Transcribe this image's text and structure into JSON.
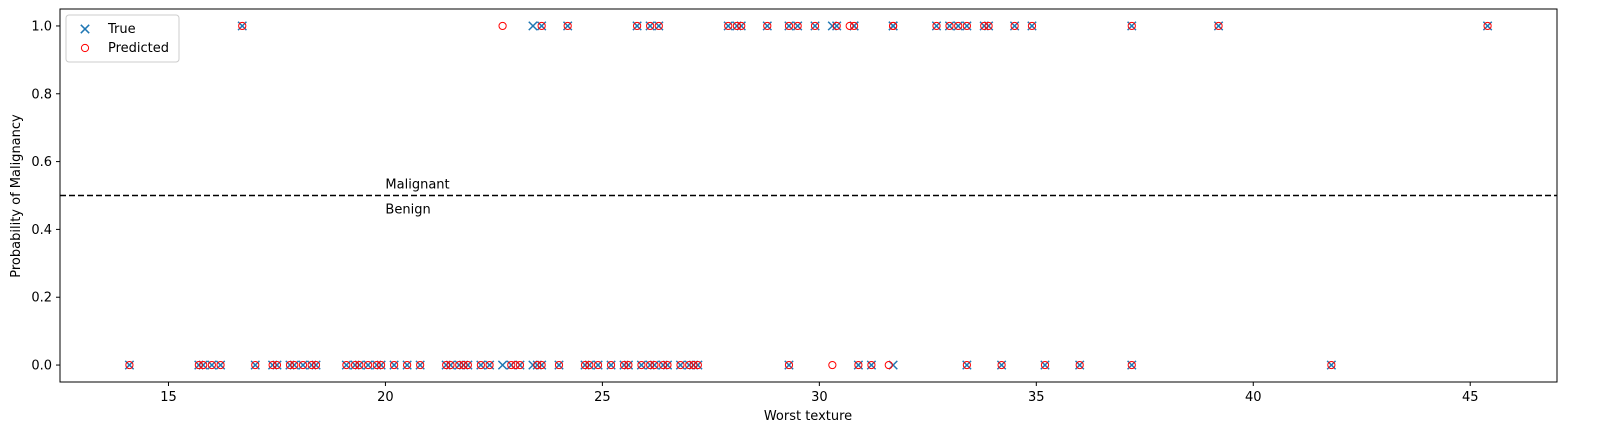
{
  "chart_data": {
    "type": "scatter",
    "title": "",
    "xlabel": "Worst texture",
    "ylabel": "Probability of Malignancy",
    "xlim": [
      12.5,
      47.0
    ],
    "ylim": [
      -0.05,
      1.05
    ],
    "xticks": [
      15,
      20,
      25,
      30,
      35,
      40,
      45
    ],
    "xtick_labels": [
      "15",
      "20",
      "25",
      "30",
      "35",
      "40",
      "45"
    ],
    "yticks": [
      0.0,
      0.2,
      0.4,
      0.6,
      0.8,
      1.0
    ],
    "ytick_labels": [
      "0.0",
      "0.2",
      "0.4",
      "0.6",
      "0.8",
      "1.0"
    ],
    "grid": false,
    "legend_position": "top-left",
    "threshold": {
      "y": 0.5,
      "style": "dashed",
      "color": "#000000",
      "above_label": "Malignant",
      "below_label": "Benign",
      "label_x": 20.0
    },
    "series": [
      {
        "name": "True",
        "marker": "x",
        "color": "#1f77b4",
        "points": [
          [
            16.7,
            1
          ],
          [
            23.4,
            1
          ],
          [
            23.6,
            1
          ],
          [
            24.2,
            1
          ],
          [
            25.8,
            1
          ],
          [
            26.1,
            1
          ],
          [
            26.3,
            1
          ],
          [
            27.9,
            1
          ],
          [
            28.1,
            1
          ],
          [
            28.2,
            1
          ],
          [
            28.8,
            1
          ],
          [
            29.3,
            1
          ],
          [
            29.5,
            1
          ],
          [
            29.9,
            1
          ],
          [
            30.3,
            1
          ],
          [
            30.4,
            1
          ],
          [
            30.8,
            1
          ],
          [
            30.8,
            1
          ],
          [
            31.7,
            1
          ],
          [
            31.7,
            1
          ],
          [
            32.7,
            1
          ],
          [
            33.0,
            1
          ],
          [
            33.2,
            1
          ],
          [
            33.4,
            1
          ],
          [
            33.8,
            1
          ],
          [
            33.9,
            1
          ],
          [
            34.5,
            1
          ],
          [
            34.9,
            1
          ],
          [
            37.2,
            1
          ],
          [
            39.2,
            1
          ],
          [
            45.4,
            1
          ],
          [
            14.1,
            0
          ],
          [
            15.7,
            0
          ],
          [
            15.8,
            0
          ],
          [
            16.0,
            0
          ],
          [
            16.2,
            0
          ],
          [
            17.0,
            0
          ],
          [
            17.4,
            0
          ],
          [
            17.5,
            0
          ],
          [
            17.8,
            0
          ],
          [
            17.9,
            0
          ],
          [
            18.1,
            0
          ],
          [
            18.3,
            0
          ],
          [
            18.4,
            0
          ],
          [
            19.1,
            0
          ],
          [
            19.3,
            0
          ],
          [
            19.4,
            0
          ],
          [
            19.6,
            0
          ],
          [
            19.8,
            0
          ],
          [
            19.9,
            0
          ],
          [
            20.2,
            0
          ],
          [
            20.5,
            0
          ],
          [
            20.8,
            0
          ],
          [
            21.4,
            0
          ],
          [
            21.5,
            0
          ],
          [
            21.7,
            0
          ],
          [
            21.8,
            0
          ],
          [
            21.9,
            0
          ],
          [
            22.2,
            0
          ],
          [
            22.4,
            0
          ],
          [
            22.7,
            0
          ],
          [
            22.9,
            0
          ],
          [
            23.1,
            0
          ],
          [
            23.4,
            0
          ],
          [
            23.5,
            0
          ],
          [
            23.6,
            0
          ],
          [
            24.0,
            0
          ],
          [
            24.6,
            0
          ],
          [
            24.7,
            0
          ],
          [
            24.9,
            0
          ],
          [
            25.2,
            0
          ],
          [
            25.5,
            0
          ],
          [
            25.6,
            0
          ],
          [
            25.9,
            0
          ],
          [
            26.1,
            0
          ],
          [
            26.2,
            0
          ],
          [
            26.4,
            0
          ],
          [
            26.5,
            0
          ],
          [
            26.8,
            0
          ],
          [
            27.0,
            0
          ],
          [
            27.1,
            0
          ],
          [
            27.2,
            0
          ],
          [
            29.3,
            0
          ],
          [
            30.9,
            0
          ],
          [
            31.2,
            0
          ],
          [
            31.7,
            0
          ],
          [
            33.4,
            0
          ],
          [
            34.2,
            0
          ],
          [
            35.2,
            0
          ],
          [
            36.0,
            0
          ],
          [
            37.2,
            0
          ],
          [
            41.8,
            0
          ]
        ]
      },
      {
        "name": "Predicted",
        "marker": "o",
        "color": "#ff0000",
        "points": [
          [
            16.7,
            1
          ],
          [
            22.7,
            1
          ],
          [
            23.6,
            1
          ],
          [
            24.2,
            1
          ],
          [
            25.8,
            1
          ],
          [
            26.1,
            1
          ],
          [
            26.3,
            1
          ],
          [
            27.9,
            1
          ],
          [
            28.1,
            1
          ],
          [
            28.2,
            1
          ],
          [
            28.8,
            1
          ],
          [
            29.3,
            1
          ],
          [
            29.5,
            1
          ],
          [
            29.9,
            1
          ],
          [
            30.4,
            1
          ],
          [
            30.7,
            1
          ],
          [
            30.8,
            1
          ],
          [
            31.7,
            1
          ],
          [
            31.7,
            1
          ],
          [
            32.7,
            1
          ],
          [
            33.0,
            1
          ],
          [
            33.2,
            1
          ],
          [
            33.4,
            1
          ],
          [
            33.8,
            1
          ],
          [
            33.9,
            1
          ],
          [
            34.5,
            1
          ],
          [
            34.9,
            1
          ],
          [
            37.2,
            1
          ],
          [
            39.2,
            1
          ],
          [
            45.4,
            1
          ],
          [
            14.1,
            0
          ],
          [
            15.7,
            0
          ],
          [
            15.8,
            0
          ],
          [
            16.0,
            0
          ],
          [
            16.2,
            0
          ],
          [
            17.0,
            0
          ],
          [
            17.4,
            0
          ],
          [
            17.5,
            0
          ],
          [
            17.8,
            0
          ],
          [
            17.9,
            0
          ],
          [
            18.1,
            0
          ],
          [
            18.3,
            0
          ],
          [
            18.4,
            0
          ],
          [
            19.1,
            0
          ],
          [
            19.3,
            0
          ],
          [
            19.4,
            0
          ],
          [
            19.6,
            0
          ],
          [
            19.8,
            0
          ],
          [
            19.9,
            0
          ],
          [
            20.2,
            0
          ],
          [
            20.5,
            0
          ],
          [
            20.8,
            0
          ],
          [
            21.4,
            0
          ],
          [
            21.5,
            0
          ],
          [
            21.7,
            0
          ],
          [
            21.8,
            0
          ],
          [
            21.9,
            0
          ],
          [
            22.2,
            0
          ],
          [
            22.4,
            0
          ],
          [
            22.9,
            0
          ],
          [
            23.0,
            0
          ],
          [
            23.1,
            0
          ],
          [
            23.5,
            0
          ],
          [
            23.6,
            0
          ],
          [
            24.0,
            0
          ],
          [
            24.6,
            0
          ],
          [
            24.7,
            0
          ],
          [
            24.9,
            0
          ],
          [
            25.2,
            0
          ],
          [
            25.5,
            0
          ],
          [
            25.6,
            0
          ],
          [
            25.9,
            0
          ],
          [
            26.1,
            0
          ],
          [
            26.2,
            0
          ],
          [
            26.4,
            0
          ],
          [
            26.5,
            0
          ],
          [
            26.8,
            0
          ],
          [
            27.0,
            0
          ],
          [
            27.1,
            0
          ],
          [
            27.2,
            0
          ],
          [
            29.3,
            0
          ],
          [
            30.3,
            0
          ],
          [
            30.9,
            0
          ],
          [
            31.2,
            0
          ],
          [
            31.6,
            0
          ],
          [
            33.4,
            0
          ],
          [
            34.2,
            0
          ],
          [
            35.2,
            0
          ],
          [
            36.0,
            0
          ],
          [
            37.2,
            0
          ],
          [
            41.8,
            0
          ]
        ]
      }
    ]
  }
}
